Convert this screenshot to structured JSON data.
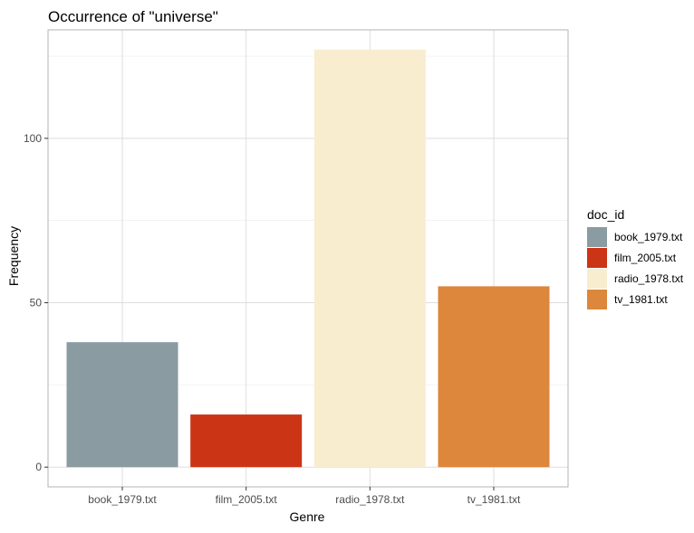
{
  "chart_data": {
    "type": "bar",
    "title": "Occurrence of \"universe\"",
    "xlabel": "Genre",
    "ylabel": "Frequency",
    "categories": [
      "book_1979.txt",
      "film_2005.txt",
      "radio_1978.txt",
      "tv_1981.txt"
    ],
    "values": [
      38,
      16,
      127,
      55
    ],
    "colors": [
      "#8a9ba1",
      "#cb3515",
      "#f9edcf",
      "#dc873b"
    ],
    "ylim": [
      -6,
      133
    ],
    "yticks": [
      0,
      50,
      100
    ],
    "yminor": [
      25,
      75,
      125
    ],
    "grid": true,
    "legend": {
      "title": "doc_id",
      "position": "right",
      "entries": [
        "book_1979.txt",
        "film_2005.txt",
        "radio_1978.txt",
        "tv_1981.txt"
      ]
    }
  }
}
